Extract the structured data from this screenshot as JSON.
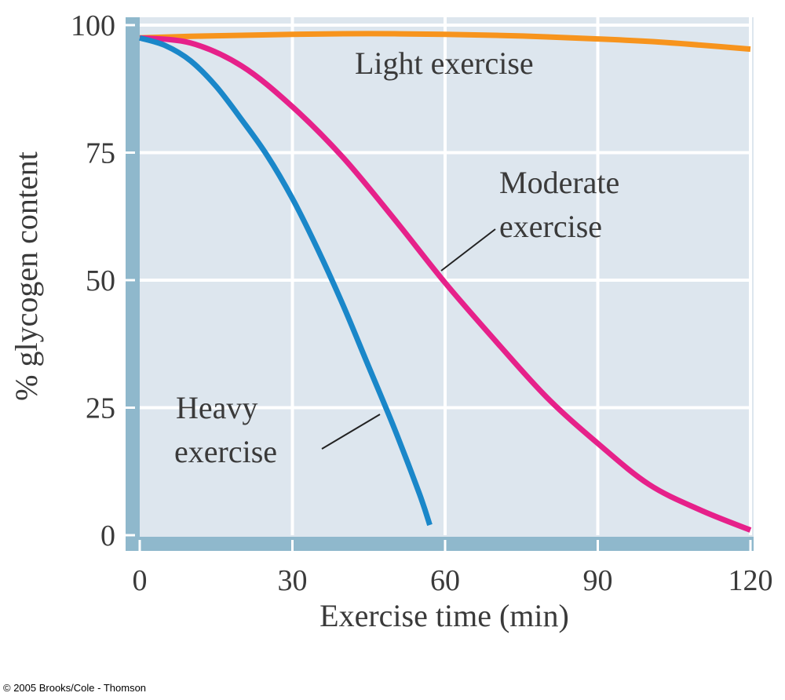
{
  "chart_data": {
    "type": "line",
    "xlabel": "Exercise time (min)",
    "ylabel": "% glycogen content",
    "xlim": [
      0,
      120
    ],
    "ylim": [
      0,
      100
    ],
    "x_ticks": [
      0,
      30,
      60,
      90,
      120
    ],
    "y_ticks": [
      0,
      25,
      50,
      75,
      100
    ],
    "grid": true,
    "series": [
      {
        "name": "Light exercise",
        "color": "#f7941d",
        "x": [
          0,
          10,
          20,
          30,
          40,
          50,
          60,
          70,
          80,
          90,
          100,
          110,
          120
        ],
        "y": [
          97.5,
          97.8,
          98.0,
          98.2,
          98.3,
          98.3,
          98.2,
          98.0,
          97.7,
          97.3,
          96.8,
          96.1,
          95.3
        ]
      },
      {
        "name": "Moderate exercise",
        "color": "#e6218a",
        "x": [
          0,
          10,
          20,
          30,
          40,
          50,
          60,
          70,
          80,
          90,
          100,
          110,
          120
        ],
        "y": [
          97.5,
          96.5,
          92,
          84,
          74,
          62,
          49.5,
          38,
          27,
          18,
          10,
          5,
          1
        ]
      },
      {
        "name": "Heavy exercise",
        "color": "#1a87c9",
        "x": [
          0,
          5,
          10,
          15,
          20,
          25,
          30,
          35,
          40,
          45,
          50,
          55,
          57
        ],
        "y": [
          97.5,
          96,
          93,
          88,
          81.5,
          74.5,
          66,
          56,
          45,
          33,
          21,
          8,
          2
        ]
      }
    ],
    "annotations": [
      {
        "lines": [
          "Light exercise"
        ]
      },
      {
        "lines": [
          "Moderate",
          "exercise"
        ]
      },
      {
        "lines": [
          "Heavy",
          "exercise"
        ]
      }
    ]
  },
  "copyright": "© 2005 Brooks/Cole - Thomson"
}
